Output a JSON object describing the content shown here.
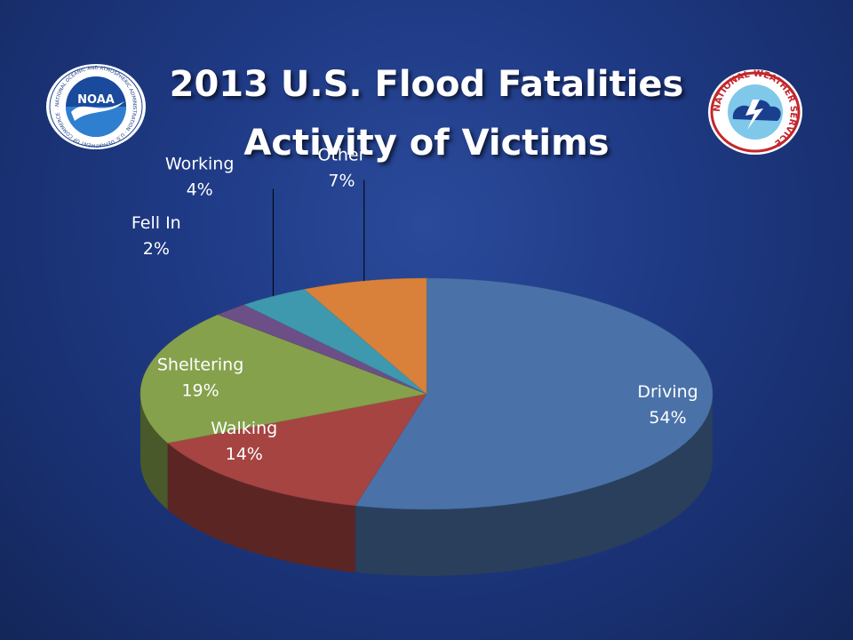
{
  "chart_data": {
    "type": "pie",
    "title": "2013 U.S. Flood Fatalities",
    "subtitle": "Activity of Victims",
    "slices": [
      {
        "label": "Driving",
        "value": 54,
        "value_label": "54%",
        "color": "#4a72a8"
      },
      {
        "label": "Walking",
        "value": 14,
        "value_label": "14%",
        "color": "#a64442"
      },
      {
        "label": "Sheltering",
        "value": 19,
        "value_label": "19%",
        "color": "#86a14c"
      },
      {
        "label": "Fell In",
        "value": 2,
        "value_label": "2%",
        "color": "#6c4f86"
      },
      {
        "label": "Working",
        "value": 4,
        "value_label": "4%",
        "color": "#3e98ae"
      },
      {
        "label": "Other",
        "value": 7,
        "value_label": "7%",
        "color": "#d9813a"
      }
    ]
  },
  "logos": {
    "noaa_text": "NOAA",
    "noaa_ring": "NATIONAL OCEANIC AND ATMOSPHERIC ADMINISTRATION · U.S. DEPARTMENT OF COMMERCE",
    "nws_ring": "NATIONAL WEATHER SERVICE"
  }
}
